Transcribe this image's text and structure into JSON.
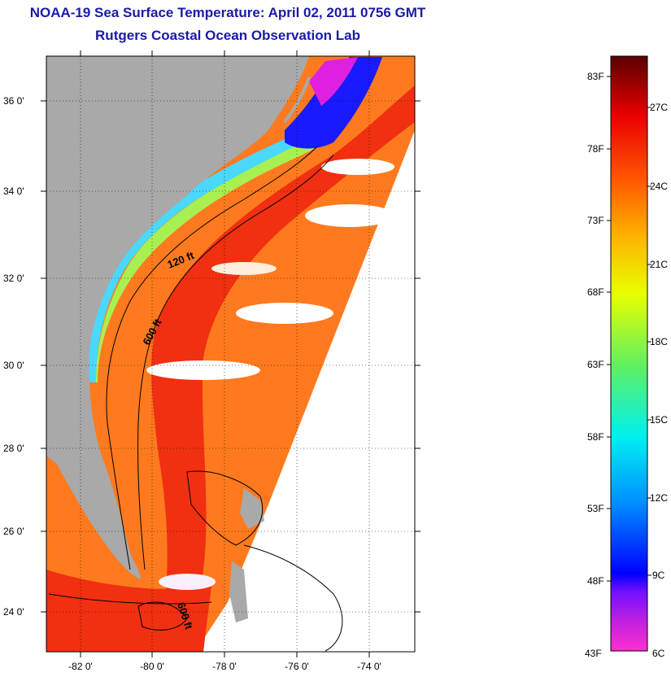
{
  "title": {
    "line1": "NOAA-19 Sea Surface Temperature:  April 02, 2011 0756 GMT",
    "line2": "Rutgers Coastal Ocean Observation Lab"
  },
  "map": {
    "lat_labels": [
      "36 0'",
      "34 0'",
      "32 0'",
      "30 0'",
      "28 0'",
      "26 0'",
      "24 0'"
    ],
    "lon_labels": [
      "-82 0'",
      "-80 0'",
      "-78 0'",
      "-76 0'",
      "-74 0'"
    ],
    "lat_range": [
      23.0,
      37.1
    ],
    "lon_range": [
      -83.0,
      -72.8
    ],
    "contour_labels": [
      "120 ft",
      "600 ft",
      "600 ft"
    ],
    "colors": {
      "land": "#a9a9a9",
      "gulf_stream": "#f03010",
      "offshore": "#ff7a1e",
      "shelf_cool": "#4ad8ff",
      "shelf_mid": "#9cf05a",
      "cold_inshore": "#1a1aff",
      "cloud": "#ffffff"
    }
  },
  "colorbar": {
    "fahrenheit": [
      "83F",
      "78F",
      "73F",
      "68F",
      "63F",
      "58F",
      "53F",
      "48F",
      "43F"
    ],
    "celsius": [
      "27C",
      "24C",
      "21C",
      "18C",
      "15C",
      "12C",
      "9C",
      "6C"
    ],
    "range_f": [
      43,
      85
    ],
    "colors": [
      "#ff30d0",
      "#9010ff",
      "#0000ff",
      "#00a0ff",
      "#00f0ff",
      "#40ff80",
      "#c0ff00",
      "#ffff00",
      "#ffb000",
      "#ff6000",
      "#ff0000",
      "#c00000",
      "#600000"
    ]
  }
}
